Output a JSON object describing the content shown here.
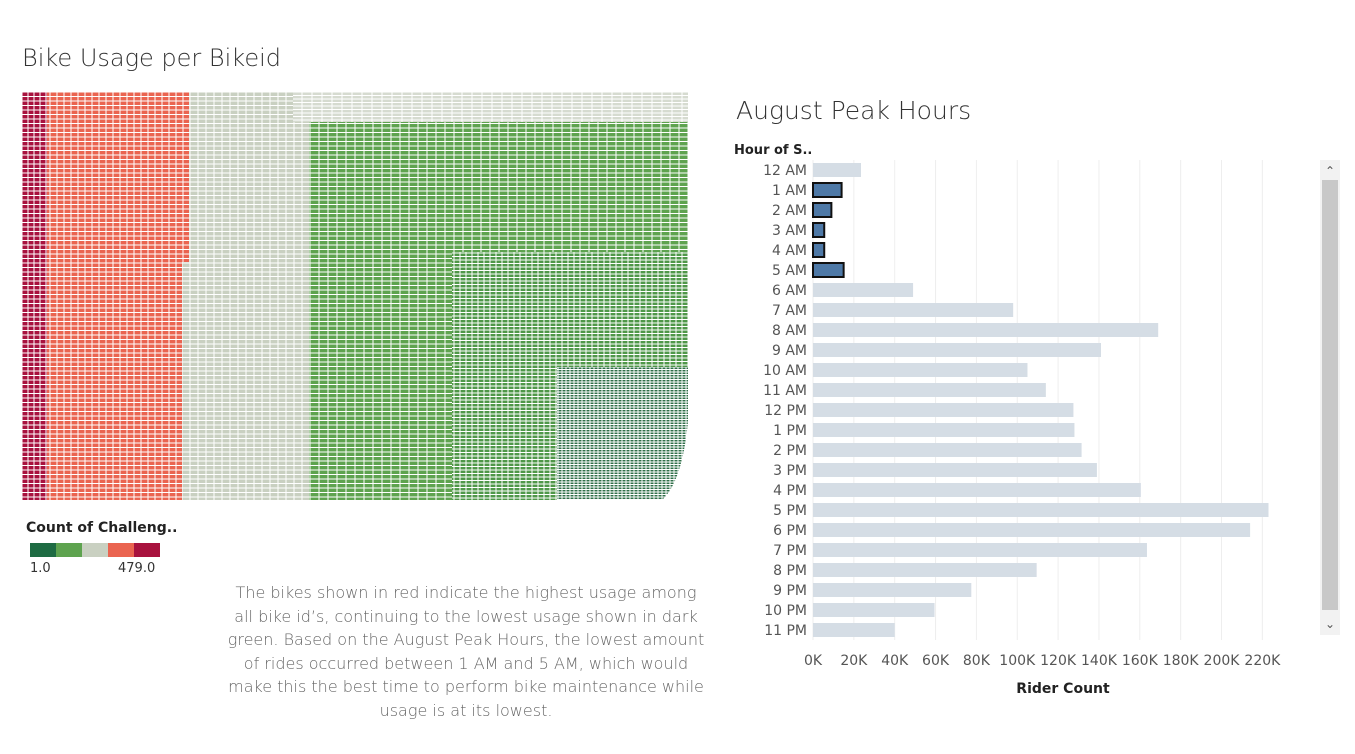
{
  "left_title": "Bike Usage per Bikeid",
  "right_title": "August Peak Hours",
  "legend": {
    "title": "Count of Challeng..",
    "min_label": "1.0",
    "max_label": "479.0",
    "colors": [
      "#1e6b43",
      "#5ea34f",
      "#c9d0c1",
      "#ea6450",
      "#a8123e"
    ]
  },
  "note": "The bikes shown in red indicate the highest usage among all bike id’s, continuing to the lowest usage shown in dark green. Based on the August Peak Hours, the lowest amount of rides occurred between 1 AM and 5 AM, which would make this the best time to perform bike maintenance while usage is at its lowest.",
  "chart_data": [
    {
      "type": "heatmap",
      "title": "Bike Usage per Bikeid",
      "color_measure": "Count of Challeng..",
      "color_range": [
        1.0,
        479.0
      ],
      "bands": [
        {
          "color": "dark red",
          "share": 0.037
        },
        {
          "color": "red",
          "share": 0.213
        },
        {
          "color": "light gray",
          "share": 0.19
        },
        {
          "color": "green",
          "share": 0.56
        }
      ]
    },
    {
      "type": "bar",
      "orientation": "horizontal",
      "title": "August Peak Hours",
      "row_header": "Hour of S..",
      "xlabel": "Rider Count",
      "categories": [
        "12 AM",
        "1 AM",
        "2 AM",
        "3 AM",
        "4 AM",
        "5 AM",
        "6 AM",
        "7 AM",
        "8 AM",
        "9 AM",
        "10 AM",
        "11 AM",
        "12 PM",
        "1 PM",
        "2 PM",
        "3 PM",
        "4 PM",
        "5 PM",
        "6 PM",
        "7 PM",
        "8 PM",
        "9 PM",
        "10 PM",
        "11 PM"
      ],
      "values": [
        23500,
        14000,
        9000,
        5500,
        5500,
        15000,
        49000,
        98000,
        169000,
        141000,
        105000,
        114000,
        127500,
        128000,
        131500,
        139000,
        160500,
        223000,
        214000,
        163500,
        109500,
        77500,
        59500,
        40000
      ],
      "highlighted": [
        "1 AM",
        "2 AM",
        "3 AM",
        "4 AM",
        "5 AM"
      ],
      "xlim": [
        0,
        235000
      ],
      "xticks": [
        0,
        20000,
        40000,
        60000,
        80000,
        100000,
        120000,
        140000,
        160000,
        180000,
        200000,
        220000
      ],
      "xtick_labels": [
        "0K",
        "20K",
        "40K",
        "60K",
        "80K",
        "100K",
        "120K",
        "140K",
        "160K",
        "180K",
        "200K",
        "220K"
      ],
      "colors": {
        "normal": "#d5dde5",
        "highlight": "#4e79a7",
        "highlight_stroke": "#111111"
      }
    }
  ]
}
